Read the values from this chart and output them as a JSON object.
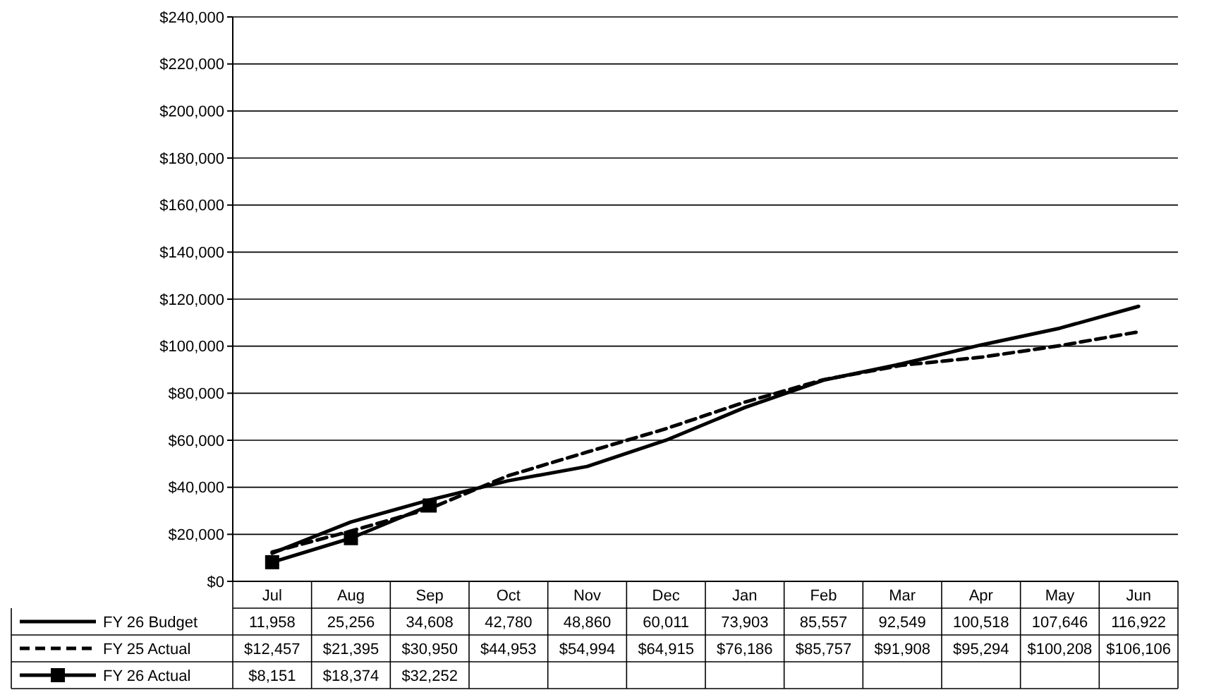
{
  "chart_data": {
    "type": "line",
    "categories": [
      "Jul",
      "Aug",
      "Sep",
      "Oct",
      "Nov",
      "Dec",
      "Jan",
      "Feb",
      "Mar",
      "Apr",
      "May",
      "Jun"
    ],
    "ylim": [
      0,
      240000
    ],
    "yticks": [
      {
        "value": 0,
        "label": "$0"
      },
      {
        "value": 20000,
        "label": "$20,000"
      },
      {
        "value": 40000,
        "label": "$40,000"
      },
      {
        "value": 60000,
        "label": "$60,000"
      },
      {
        "value": 80000,
        "label": "$80,000"
      },
      {
        "value": 100000,
        "label": "$100,000"
      },
      {
        "value": 120000,
        "label": "$120,000"
      },
      {
        "value": 140000,
        "label": "$140,000"
      },
      {
        "value": 160000,
        "label": "$160,000"
      },
      {
        "value": 180000,
        "label": "$180,000"
      },
      {
        "value": 200000,
        "label": "$200,000"
      },
      {
        "value": 220000,
        "label": "$220,000"
      },
      {
        "value": 240000,
        "label": "$240,000"
      }
    ],
    "grid": "y",
    "legend": "bottom",
    "series": [
      {
        "name": "FY 26 Budget",
        "color": "#000000",
        "line_style": "solid",
        "marker": "none",
        "values": [
          11958,
          25256,
          34608,
          42780,
          48860,
          60011,
          73903,
          85557,
          92549,
          100518,
          107646,
          116922
        ],
        "value_labels": [
          "11,958",
          "25,256",
          "34,608",
          "42,780",
          "48,860",
          "60,011",
          "73,903",
          "85,557",
          "92,549",
          "100,518",
          "107,646",
          "116,922"
        ]
      },
      {
        "name": "FY 25 Actual",
        "color": "#000000",
        "line_style": "dashed",
        "marker": "none",
        "values": [
          12457,
          21395,
          30950,
          44953,
          54994,
          64915,
          76186,
          85757,
          91908,
          95294,
          100208,
          106106
        ],
        "value_labels": [
          "$12,457",
          "$21,395",
          "$30,950",
          "$44,953",
          "$54,994",
          "$64,915",
          "$76,186",
          "$85,757",
          "$91,908",
          "$95,294",
          "$100,208",
          "$106,106"
        ]
      },
      {
        "name": "FY 26 Actual",
        "color": "#000000",
        "line_style": "solid",
        "marker": "square",
        "values": [
          8151,
          18374,
          32252,
          null,
          null,
          null,
          null,
          null,
          null,
          null,
          null,
          null
        ],
        "value_labels": [
          "$8,151",
          "$18,374",
          "$32,252",
          null,
          null,
          null,
          null,
          null,
          null,
          null,
          null,
          null
        ]
      }
    ]
  }
}
